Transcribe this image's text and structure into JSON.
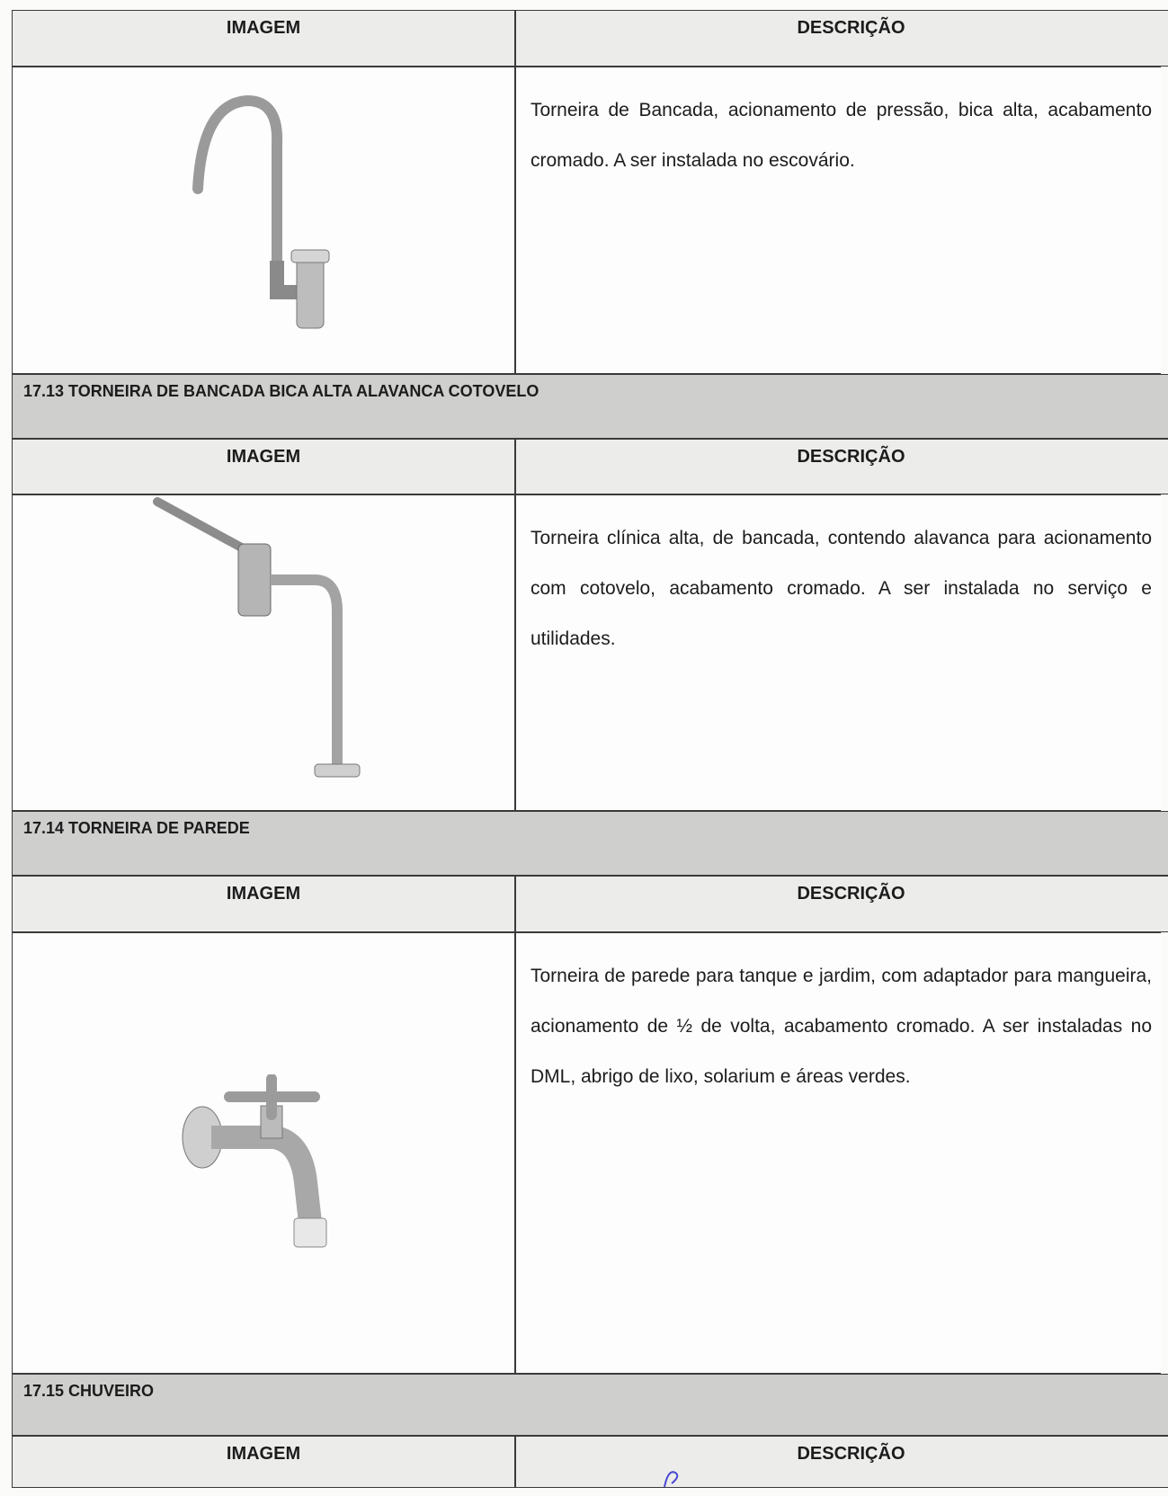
{
  "sections": [
    {
      "headers": [
        "IMAGEM",
        "DESCRIÇÃO"
      ],
      "description": "Torneira de Bancada, acionamento de pressão, bica alta, acabamento cromado. A ser instalada no escovário."
    },
    {
      "title": "17.13 TORNEIRA DE BANCADA BICA ALTA ALAVANCA COTOVELO",
      "headers": [
        "IMAGEM",
        "DESCRIÇÃO"
      ],
      "description": "Torneira clínica alta, de bancada, contendo alavanca para acionamento com cotovelo, acabamento cromado. A ser instalada no serviço e utilidades."
    },
    {
      "title": "17.14 TORNEIRA DE PAREDE",
      "headers": [
        "IMAGEM",
        "DESCRIÇÃO"
      ],
      "description": "Torneira de parede para tanque e jardim, com adaptador para mangueira, acionamento de ½ de volta, acabamento cromado. A ser instaladas no DML, abrigo de lixo, solarium e áreas verdes."
    },
    {
      "title": "17.15 CHUVEIRO",
      "headers": [
        "IMAGEM",
        "DESCRIÇÃO"
      ]
    }
  ]
}
